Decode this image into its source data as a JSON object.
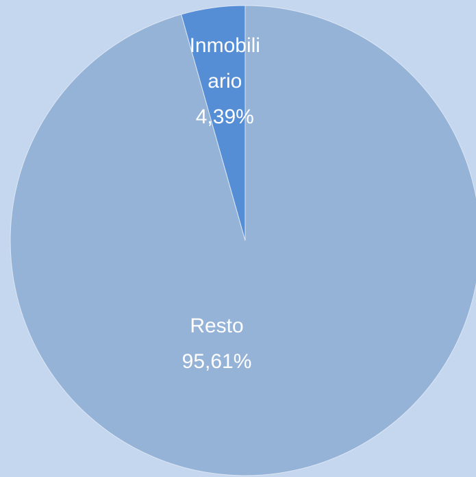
{
  "chart_data": {
    "type": "pie",
    "categories": [
      "Resto",
      "Inmobiliario"
    ],
    "values": [
      95.61,
      4.39
    ],
    "value_labels": [
      "95,61%",
      "4,39%"
    ],
    "colors": [
      "#95b3d7",
      "#558ed5"
    ],
    "background": "#c5d7ef"
  }
}
